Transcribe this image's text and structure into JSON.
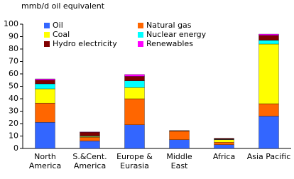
{
  "chart_data": {
    "type": "stacked_bar",
    "y_label": "mmb/d oil equivalent",
    "categories": [
      "North America",
      "S.&Cent. America",
      "Europe & Eurasia",
      "Middle East",
      "Africa",
      "Asia Pacific"
    ],
    "series": [
      {
        "name": "Oil",
        "color": "#3366ff",
        "values": [
          21,
          6,
          19,
          7,
          3,
          26
        ]
      },
      {
        "name": "Natural gas",
        "color": "#ff6600",
        "values": [
          15.5,
          3,
          21,
          7,
          2,
          10
        ]
      },
      {
        "name": "Coal",
        "color": "#ffff00",
        "values": [
          11.5,
          0.5,
          9,
          0.2,
          2,
          48
        ]
      },
      {
        "name": "Nuclear energy",
        "color": "#00ffff",
        "values": [
          4,
          0.5,
          5.5,
          0,
          0.2,
          3
        ]
      },
      {
        "name": "Hydro electricity",
        "color": "#800000",
        "values": [
          3,
          3,
          3.5,
          0.2,
          0.8,
          4
        ]
      },
      {
        "name": "Renewables",
        "color": "#ff00ff",
        "values": [
          1,
          0.3,
          1.5,
          0,
          0.1,
          1
        ]
      }
    ],
    "ylim": [
      0,
      100
    ],
    "yticks": [
      0,
      10,
      20,
      30,
      40,
      50,
      60,
      70,
      80,
      90,
      100
    ],
    "grid": false
  }
}
